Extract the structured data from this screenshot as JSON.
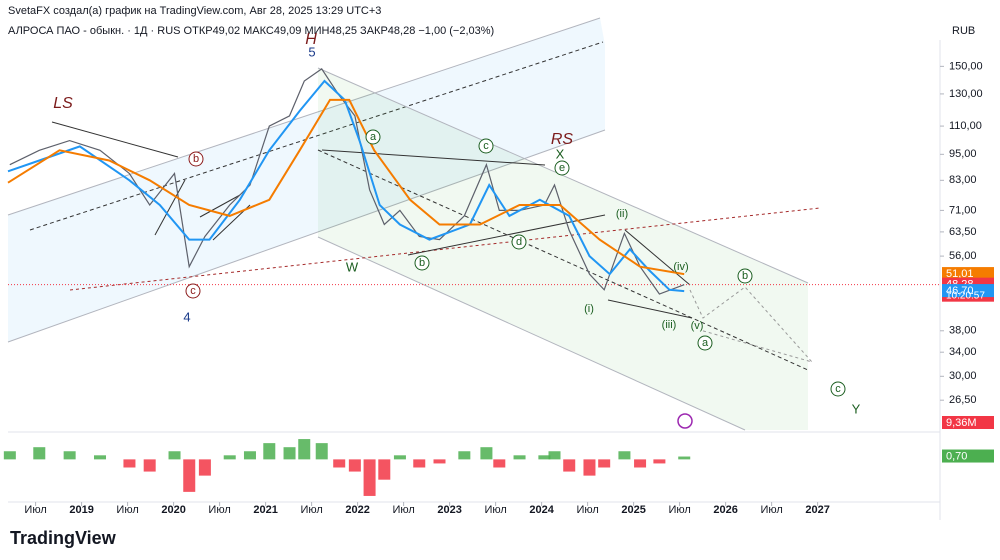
{
  "header": {
    "attribution": "SvetaFX создал(а) график на TradingView.com, Авг 28, 2025 13:29 UTC+3",
    "symbol_line": "АЛРОСА ПАО - обыкн. · 1Д · RUS  ОТКР49,02  МАКС49,09  МИН48,25  ЗАКР48,28  −1,00 (−2,03%)",
    "currency": "RUB",
    "logo": "TradingView"
  },
  "chart_data": {
    "type": "line",
    "log_scale": true,
    "xlim": [
      2018.2,
      2028.33
    ],
    "ylim": [
      22.7,
      172
    ],
    "xticks": [
      {
        "value": 2018.5,
        "label": "Июл"
      },
      2019,
      {
        "value": 2019.5,
        "label": "Июл"
      },
      2020,
      {
        "value": 2020.5,
        "label": "Июл"
      },
      2021,
      {
        "value": 2021.5,
        "label": "Июл"
      },
      2022,
      {
        "value": 2022.5,
        "label": "Июл"
      },
      2023,
      {
        "value": 2023.5,
        "label": "Июл"
      },
      2024,
      {
        "value": 2024.5,
        "label": "Июл"
      },
      2025,
      {
        "value": 2025.5,
        "label": "Июл"
      },
      2026,
      {
        "value": 2026.5,
        "label": "Июл"
      },
      2027
    ],
    "yticks": [
      {
        "value": 26.5,
        "label": "26,50"
      },
      {
        "value": 30,
        "label": "30,00"
      },
      {
        "value": 34,
        "label": "34,00"
      },
      {
        "value": 38,
        "label": "38,00"
      },
      {
        "value": 56,
        "label": "56,00"
      },
      {
        "value": 63.5,
        "label": "63,50"
      },
      {
        "value": 71,
        "label": "71,00"
      },
      {
        "value": 83,
        "label": "83,00"
      },
      {
        "value": 95,
        "label": "95,00"
      },
      {
        "value": 110,
        "label": "110,00"
      },
      {
        "value": 130,
        "label": "130,00"
      },
      {
        "value": 150,
        "label": "150,00"
      }
    ],
    "series": [
      {
        "color": "#5d606b",
        "x": [
          2018.22,
          2018.54,
          2018.87,
          2019.2,
          2019.52,
          2019.74,
          2020.01,
          2020.17,
          2020.34,
          2020.61,
          2020.83,
          2021.04,
          2021.26,
          2021.42,
          2021.61,
          2021.8,
          2021.97,
          2022.13,
          2022.29,
          2022.46,
          2022.67,
          2022.89,
          2023.16,
          2023.4,
          2023.54,
          2023.76,
          2024.03,
          2024.14,
          2024.3,
          2024.52,
          2024.68,
          2024.9,
          2025.07,
          2025.28,
          2025.55
        ],
        "values": [
          90,
          97,
          102,
          97,
          86,
          73,
          86,
          53,
          62,
          73,
          81,
          110,
          116,
          139,
          148,
          129,
          116,
          79,
          66,
          71,
          62,
          61,
          69,
          90,
          71,
          71,
          73,
          81,
          64,
          51,
          47,
          63,
          53,
          46,
          48.28
        ]
      },
      {
        "color": "#2196f3",
        "x": [
          2018.2,
          2018.54,
          2018.98,
          2019.52,
          2019.85,
          2020.17,
          2020.39,
          2020.72,
          2021.04,
          2021.37,
          2021.64,
          2021.86,
          2022.02,
          2022.24,
          2022.46,
          2022.78,
          2023.22,
          2023.43,
          2023.65,
          2023.98,
          2024.3,
          2024.52,
          2024.74,
          2024.96,
          2025.17,
          2025.39,
          2025.55
        ],
        "values": [
          87,
          92,
          99,
          83,
          73,
          61,
          61,
          75,
          97,
          119,
          139,
          126,
          102,
          73,
          66,
          61,
          66,
          81,
          69,
          75,
          69,
          56,
          51,
          58,
          52,
          47,
          46.7
        ]
      },
      {
        "color": "#f57c00",
        "x": [
          2018.2,
          2018.76,
          2019.3,
          2019.74,
          2020.17,
          2020.61,
          2021.04,
          2021.37,
          2021.7,
          2021.91,
          2022.18,
          2022.57,
          2022.89,
          2023.33,
          2023.76,
          2024.2,
          2024.63,
          2025.07,
          2025.55
        ],
        "values": [
          82,
          97,
          92,
          83,
          73,
          69,
          75,
          97,
          126,
          126,
          97,
          75,
          66,
          66,
          73,
          73,
          61,
          53,
          51.01
        ]
      }
    ],
    "last_values": [
      {
        "value": 51.01,
        "label": "51,01",
        "color": "#f57c00"
      },
      {
        "value": 48.28,
        "label": "48,28",
        "color": "#f23645"
      },
      {
        "value": 46.7,
        "label": "46,70",
        "color": "#2196f3"
      }
    ],
    "countdown": "10:20:57",
    "volume_label": "9,36M",
    "oscillator": {
      "ylim": [
        -10,
        6
      ],
      "color": "#4caf50",
      "negative_color": "#f23645",
      "values": [
        2,
        3,
        2,
        1,
        -2,
        -3,
        2,
        -8,
        -4,
        1,
        2,
        4,
        3,
        5,
        4,
        -2,
        -3,
        -9,
        -5,
        1,
        -2,
        -1,
        2,
        3,
        -2,
        1,
        1,
        2,
        -3,
        -4,
        -2,
        2,
        -2,
        -1,
        0.7
      ],
      "last_label": {
        "value": 0.7,
        "label": "0,70"
      }
    },
    "annotations": [
      "LS",
      "H",
      "5",
      "4",
      "RS",
      "X",
      "W",
      "Y",
      "b",
      "c",
      "a",
      "c",
      "e",
      "d",
      "b",
      "b",
      "a",
      "c",
      "(i)",
      "(ii)",
      "(iii)",
      "(iv)",
      "(v)"
    ]
  }
}
